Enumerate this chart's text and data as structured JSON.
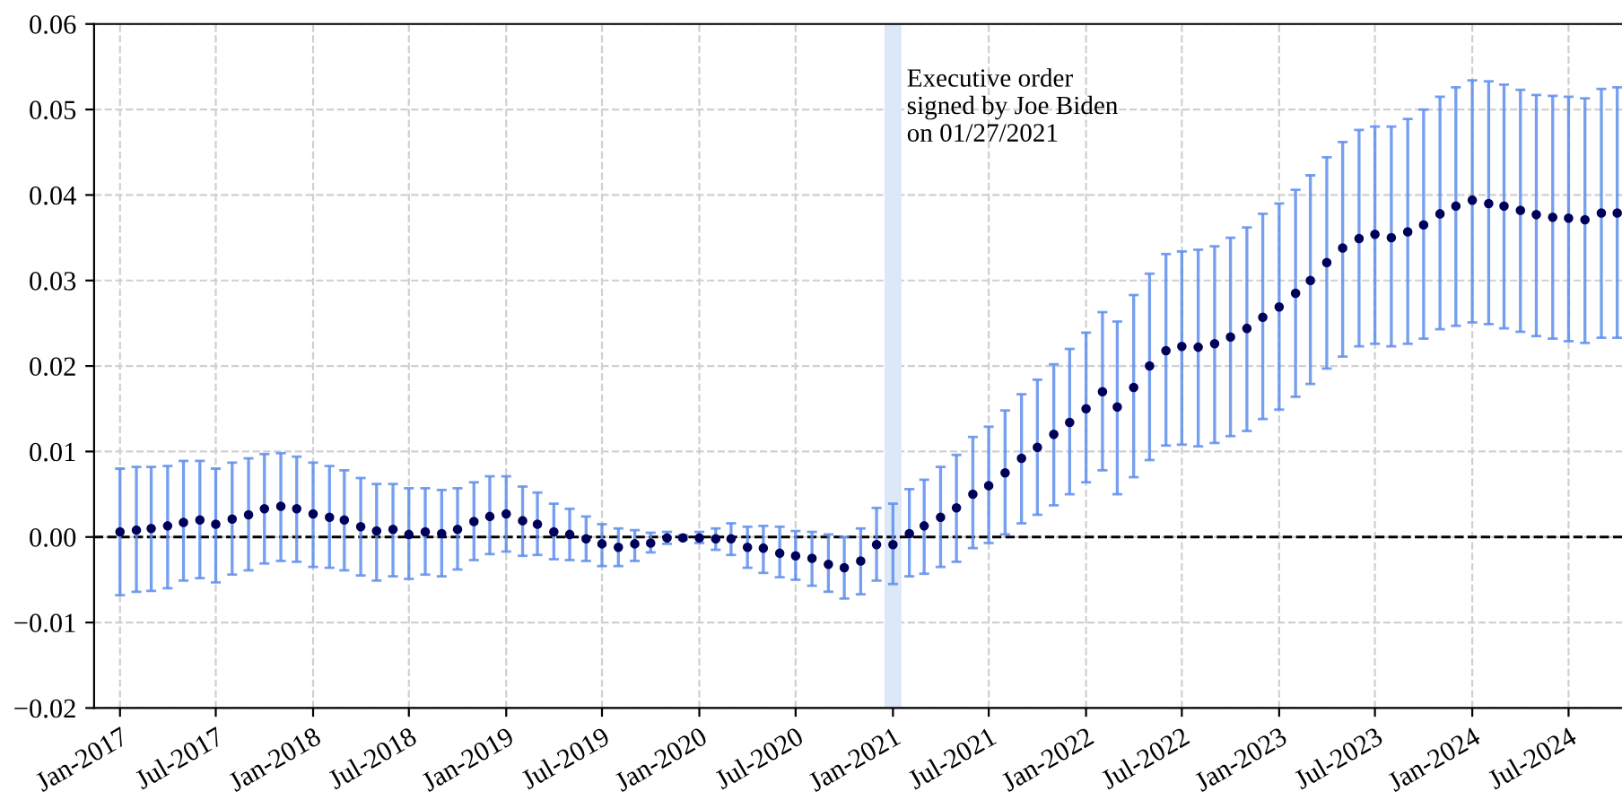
{
  "chart_data": {
    "type": "scatter",
    "x": [
      "2017-01",
      "2017-02",
      "2017-03",
      "2017-04",
      "2017-05",
      "2017-06",
      "2017-07",
      "2017-08",
      "2017-09",
      "2017-10",
      "2017-11",
      "2017-12",
      "2018-01",
      "2018-02",
      "2018-03",
      "2018-04",
      "2018-05",
      "2018-06",
      "2018-07",
      "2018-08",
      "2018-09",
      "2018-10",
      "2018-11",
      "2018-12",
      "2019-01",
      "2019-02",
      "2019-03",
      "2019-04",
      "2019-05",
      "2019-06",
      "2019-07",
      "2019-08",
      "2019-09",
      "2019-10",
      "2019-11",
      "2019-12",
      "2020-01",
      "2020-02",
      "2020-03",
      "2020-04",
      "2020-05",
      "2020-06",
      "2020-07",
      "2020-08",
      "2020-09",
      "2020-10",
      "2020-11",
      "2020-12",
      "2021-01",
      "2021-02",
      "2021-03",
      "2021-04",
      "2021-05",
      "2021-06",
      "2021-07",
      "2021-08",
      "2021-09",
      "2021-10",
      "2021-11",
      "2021-12",
      "2022-01",
      "2022-02",
      "2022-03",
      "2022-04",
      "2022-05",
      "2022-06",
      "2022-07",
      "2022-08",
      "2022-09",
      "2022-10",
      "2022-11",
      "2022-12",
      "2023-01",
      "2023-02",
      "2023-03",
      "2023-04",
      "2023-05",
      "2023-06",
      "2023-07",
      "2023-08",
      "2023-09",
      "2023-10",
      "2023-11",
      "2023-12",
      "2024-01",
      "2024-02",
      "2024-03",
      "2024-04",
      "2024-05",
      "2024-06",
      "2024-07",
      "2024-08",
      "2024-09",
      "2024-10"
    ],
    "series": [
      {
        "color": "#00005a",
        "values": [
          0.0006,
          0.0008,
          0.001,
          0.0013,
          0.0017,
          0.002,
          0.0015,
          0.0021,
          0.0026,
          0.0033,
          0.0036,
          0.0033,
          0.0027,
          0.0023,
          0.002,
          0.0012,
          0.0007,
          0.0009,
          0.0003,
          0.0006,
          0.0004,
          0.0009,
          0.0018,
          0.0024,
          0.0027,
          0.0019,
          0.0015,
          0.0006,
          0.0003,
          -0.0002,
          -0.0008,
          -0.0012,
          -0.0008,
          -0.0007,
          -0.0001,
          -0.0001,
          -0.0001,
          -0.0002,
          -0.0002,
          -0.0012,
          -0.0013,
          -0.0019,
          -0.0022,
          -0.0025,
          -0.0032,
          -0.0036,
          -0.0028,
          -0.0009,
          -0.0009,
          0.0004,
          0.0013,
          0.0023,
          0.0034,
          0.005,
          0.006,
          0.0075,
          0.0092,
          0.0105,
          0.012,
          0.0134,
          0.015,
          0.017,
          0.0152,
          0.0175,
          0.02,
          0.0218,
          0.0223,
          0.0222,
          0.0226,
          0.0234,
          0.0244,
          0.0257,
          0.0269,
          0.0285,
          0.03,
          0.0321,
          0.0338,
          0.0349,
          0.0354,
          0.035,
          0.0357,
          0.0365,
          0.0378,
          0.0387,
          0.0394,
          0.039,
          0.0387,
          0.0382,
          0.0377,
          0.0374,
          0.0373,
          0.0371,
          0.0379,
          0.0379
        ],
        "errors": [
          [
            -0.0068,
            0.008
          ],
          [
            -0.0064,
            0.0082
          ],
          [
            -0.0063,
            0.0082
          ],
          [
            -0.006,
            0.0083
          ],
          [
            -0.0051,
            0.0089
          ],
          [
            -0.0048,
            0.0089
          ],
          [
            -0.0053,
            0.008
          ],
          [
            -0.0044,
            0.0087
          ],
          [
            -0.0039,
            0.0092
          ],
          [
            -0.0031,
            0.0097
          ],
          [
            -0.0028,
            0.0098
          ],
          [
            -0.0029,
            0.0094
          ],
          [
            -0.0035,
            0.0087
          ],
          [
            -0.0036,
            0.0083
          ],
          [
            -0.0039,
            0.0078
          ],
          [
            -0.0045,
            0.0069
          ],
          [
            -0.0051,
            0.0062
          ],
          [
            -0.0046,
            0.0062
          ],
          [
            -0.0049,
            0.0057
          ],
          [
            -0.0044,
            0.0057
          ],
          [
            -0.0046,
            0.0055
          ],
          [
            -0.0038,
            0.0057
          ],
          [
            -0.0027,
            0.0064
          ],
          [
            -0.002,
            0.0071
          ],
          [
            -0.0017,
            0.0071
          ],
          [
            -0.0022,
            0.0059
          ],
          [
            -0.0021,
            0.0052
          ],
          [
            -0.0026,
            0.0039
          ],
          [
            -0.0027,
            0.0033
          ],
          [
            -0.0028,
            0.0024
          ],
          [
            -0.0034,
            0.0015
          ],
          [
            -0.0034,
            0.001
          ],
          [
            -0.0028,
            0.0008
          ],
          [
            -0.0018,
            0.0005
          ],
          [
            -0.0008,
            0.0006
          ],
          [
            -0.0003,
            0.0002
          ],
          [
            -0.0007,
            0.0006
          ],
          [
            -0.0015,
            0.001
          ],
          [
            -0.0021,
            0.0016
          ],
          [
            -0.0036,
            0.0012
          ],
          [
            -0.0042,
            0.0013
          ],
          [
            -0.0047,
            0.0012
          ],
          [
            -0.005,
            0.0007
          ],
          [
            -0.0057,
            0.0006
          ],
          [
            -0.0064,
            0.0003
          ],
          [
            -0.0072,
            0.0
          ],
          [
            -0.0067,
            0.001
          ],
          [
            -0.0051,
            0.0034
          ],
          [
            -0.0055,
            0.0039
          ],
          [
            -0.0046,
            0.0056
          ],
          [
            -0.0043,
            0.0067
          ],
          [
            -0.0035,
            0.0082
          ],
          [
            -0.0029,
            0.0096
          ],
          [
            -0.0013,
            0.0117
          ],
          [
            -0.0007,
            0.0129
          ],
          [
            0.0003,
            0.0148
          ],
          [
            0.0016,
            0.0167
          ],
          [
            0.0026,
            0.0184
          ],
          [
            0.0037,
            0.0202
          ],
          [
            0.005,
            0.022
          ],
          [
            0.0064,
            0.0239
          ],
          [
            0.0078,
            0.0263
          ],
          [
            0.005,
            0.0252
          ],
          [
            0.007,
            0.0283
          ],
          [
            0.009,
            0.0308
          ],
          [
            0.0107,
            0.0331
          ],
          [
            0.0108,
            0.0334
          ],
          [
            0.0106,
            0.0336
          ],
          [
            0.011,
            0.034
          ],
          [
            0.0118,
            0.035
          ],
          [
            0.0124,
            0.0362
          ],
          [
            0.0138,
            0.0378
          ],
          [
            0.0149,
            0.039
          ],
          [
            0.0164,
            0.0406
          ],
          [
            0.0179,
            0.0423
          ],
          [
            0.0197,
            0.0444
          ],
          [
            0.0211,
            0.0462
          ],
          [
            0.0223,
            0.0476
          ],
          [
            0.0226,
            0.048
          ],
          [
            0.0223,
            0.048
          ],
          [
            0.0226,
            0.0489
          ],
          [
            0.0232,
            0.05
          ],
          [
            0.0243,
            0.0515
          ],
          [
            0.0247,
            0.0526
          ],
          [
            0.0251,
            0.0534
          ],
          [
            0.0249,
            0.0533
          ],
          [
            0.0244,
            0.0529
          ],
          [
            0.024,
            0.0523
          ],
          [
            0.0235,
            0.0517
          ],
          [
            0.0232,
            0.0516
          ],
          [
            0.0229,
            0.0515
          ],
          [
            0.0227,
            0.0513
          ],
          [
            0.0233,
            0.0524
          ],
          [
            0.0233,
            0.0526
          ]
        ]
      }
    ],
    "marker": "circle",
    "grid": true,
    "xlim": [
      "2016-11-13",
      "2024-10-10"
    ],
    "xticks": [
      {
        "value": "2017-01",
        "label": "Jan-2017"
      },
      {
        "value": "2017-07",
        "label": "Jul-2017"
      },
      {
        "value": "2018-01",
        "label": "Jan-2018"
      },
      {
        "value": "2018-07",
        "label": "Jul-2018"
      },
      {
        "value": "2019-01",
        "label": "Jan-2019"
      },
      {
        "value": "2019-07",
        "label": "Jul-2019"
      },
      {
        "value": "2020-01",
        "label": "Jan-2020"
      },
      {
        "value": "2020-07",
        "label": "Jul-2020"
      },
      {
        "value": "2021-01",
        "label": "Jan-2021"
      },
      {
        "value": "2021-07",
        "label": "Jul-2021"
      },
      {
        "value": "2022-01",
        "label": "Jan-2022"
      },
      {
        "value": "2022-07",
        "label": "Jul-2022"
      },
      {
        "value": "2023-01",
        "label": "Jan-2023"
      },
      {
        "value": "2023-07",
        "label": "Jul-2023"
      },
      {
        "value": "2024-01",
        "label": "Jan-2024"
      },
      {
        "value": "2024-07",
        "label": "Jul-2024"
      }
    ],
    "ylim": [
      -0.02,
      0.06
    ],
    "yticks": [
      {
        "value": -0.02,
        "label": "−0.02"
      },
      {
        "value": -0.01,
        "label": "−0.01"
      },
      {
        "value": 0,
        "label": "0.00"
      },
      {
        "value": 0.01,
        "label": "0.01"
      },
      {
        "value": 0.02,
        "label": "0.02"
      },
      {
        "value": 0.03,
        "label": "0.03"
      },
      {
        "value": 0.04,
        "label": "0.04"
      },
      {
        "value": 0.05,
        "label": "0.05"
      },
      {
        "value": 0.06,
        "label": "0.06"
      }
    ],
    "ref_lines": [
      {
        "axis": "y",
        "value": 0,
        "color": "#000000",
        "line_style": "dashed"
      }
    ],
    "bands": [
      {
        "axis": "x",
        "from": "2020-12-16",
        "to": "2021-01-17",
        "color": "#dce7f8"
      }
    ],
    "annotations": [
      {
        "text": "Executive order\nsigned by Joe Biden\non 01/27/2021",
        "x": "2021-01-27",
        "y": 0.0548
      }
    ]
  }
}
